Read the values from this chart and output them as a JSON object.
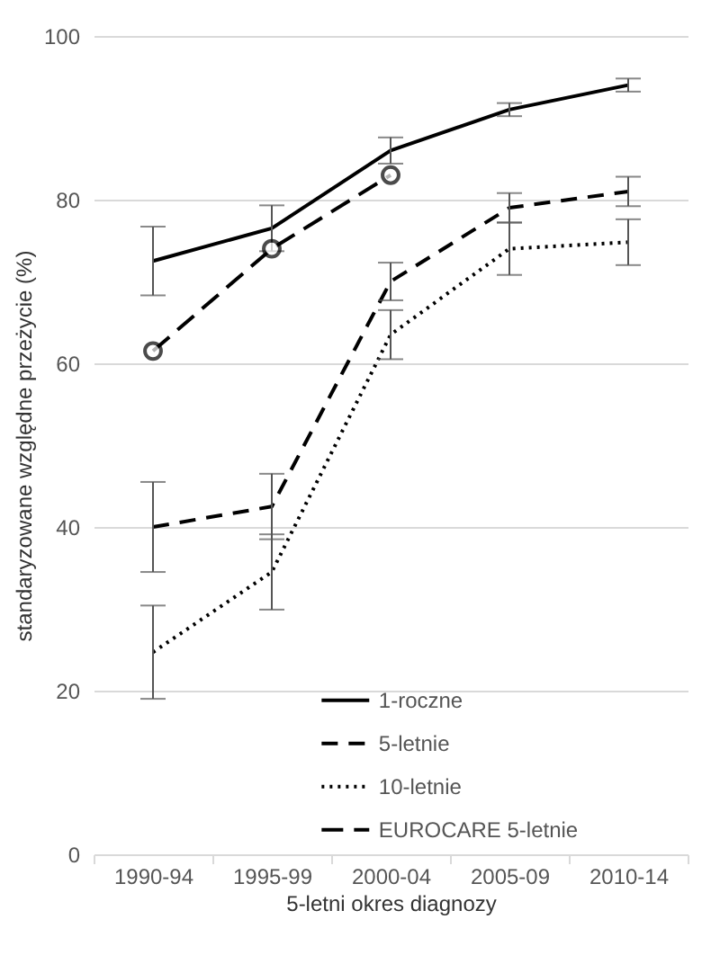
{
  "chart_data": {
    "type": "line",
    "xlabel": "5-letni okres diagnozy",
    "ylabel": "standaryzowane względne przeżycie (%)",
    "categories": [
      "1990-94",
      "1995-99",
      "2000-04",
      "2005-09",
      "2010-14"
    ],
    "series": [
      {
        "name": "1-roczne",
        "color": "#000000",
        "line_style": "solid",
        "values": [
          72.5,
          76.5,
          86,
          91,
          94
        ],
        "errors": [
          4.2,
          2.8,
          1.6,
          0.8,
          0.8
        ]
      },
      {
        "name": "5-letnie",
        "color": "#000000",
        "line_style": "dashed",
        "values": [
          40,
          42.5,
          70,
          79,
          81
        ],
        "errors": [
          5.5,
          4,
          2.3,
          1.8,
          1.8
        ]
      },
      {
        "name": "10-letnie",
        "color": "#000000",
        "line_style": "dotted",
        "values": [
          24.7,
          34.5,
          63.5,
          74,
          74.8
        ],
        "errors": [
          5.7,
          4.6,
          3,
          3.2,
          2.8
        ]
      },
      {
        "name": "EUROCARE 5-letnie",
        "color": "#000000",
        "line_style": "dashed",
        "marker": "circle",
        "values": [
          61.5,
          74,
          83,
          null,
          null
        ]
      }
    ],
    "ylim": [
      0,
      100
    ],
    "yticks": [
      0,
      20,
      40,
      60,
      80,
      100
    ],
    "grid": "y",
    "legend": "bottom"
  }
}
